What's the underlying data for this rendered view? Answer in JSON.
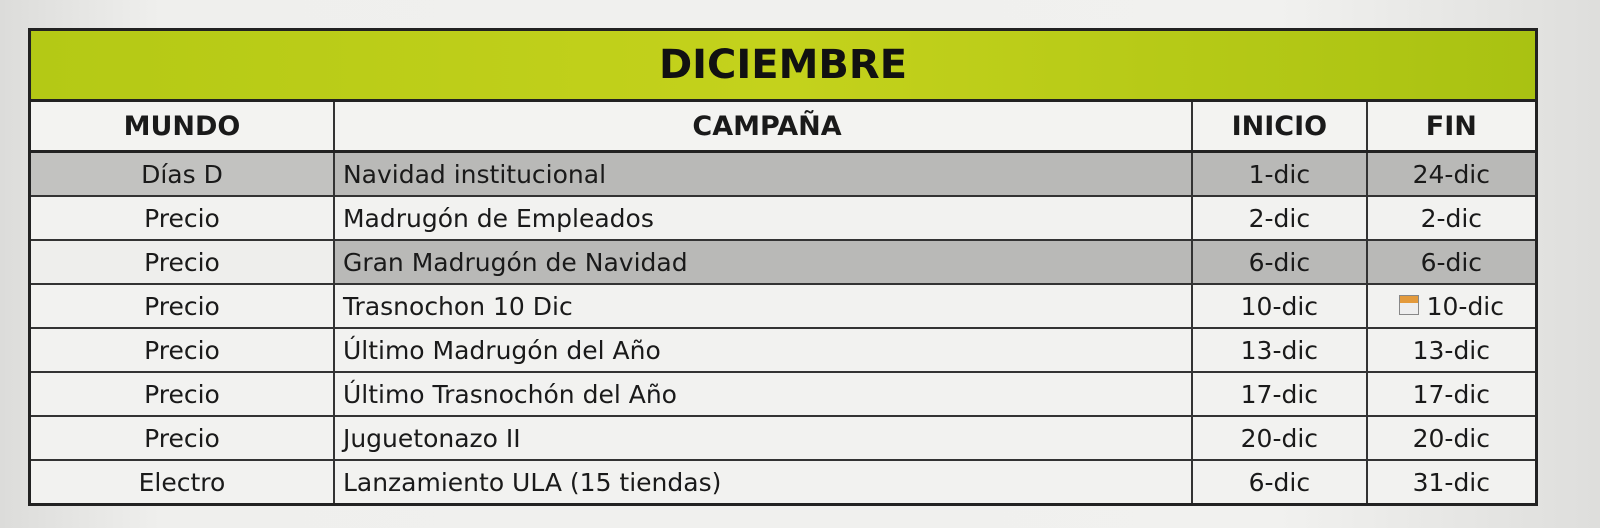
{
  "title": "DICIEMBRE",
  "headers": [
    "MUNDO",
    "CAMPAÑA",
    "INICIO",
    "FIN"
  ],
  "rows": [
    {
      "mundo": "Días D",
      "campana": "Navidad institucional",
      "inicio": "1-dic",
      "fin": "24-dic"
    },
    {
      "mundo": "Precio",
      "campana": "Madrugón de Empleados",
      "inicio": "2-dic",
      "fin": "2-dic"
    },
    {
      "mundo": "Precio",
      "campana": "Gran Madrugón de Navidad",
      "inicio": "6-dic",
      "fin": "6-dic"
    },
    {
      "mundo": "Precio",
      "campana": "Trasnochon 10 Dic",
      "inicio": "10-dic",
      "fin": "10-dic"
    },
    {
      "mundo": "Precio",
      "campana": "Último Madrugón del Año",
      "inicio": "13-dic",
      "fin": "13-dic"
    },
    {
      "mundo": "Precio",
      "campana": "Último Trasnochón del Año",
      "inicio": "17-dic",
      "fin": "17-dic"
    },
    {
      "mundo": "Precio",
      "campana": "Juguetonazo II",
      "inicio": "20-dic",
      "fin": "20-dic"
    },
    {
      "mundo": "Electro",
      "campana": "Lanzamiento ULA (15 tiendas)",
      "inicio": "6-dic",
      "fin": "31-dic"
    }
  ],
  "colors": {
    "title_bg": "#b9cc17",
    "highlight_row": "#b9b9b7",
    "selection_border": "#2e8b3a"
  },
  "icons": {
    "fin_row_4": "paste-options-icon"
  }
}
